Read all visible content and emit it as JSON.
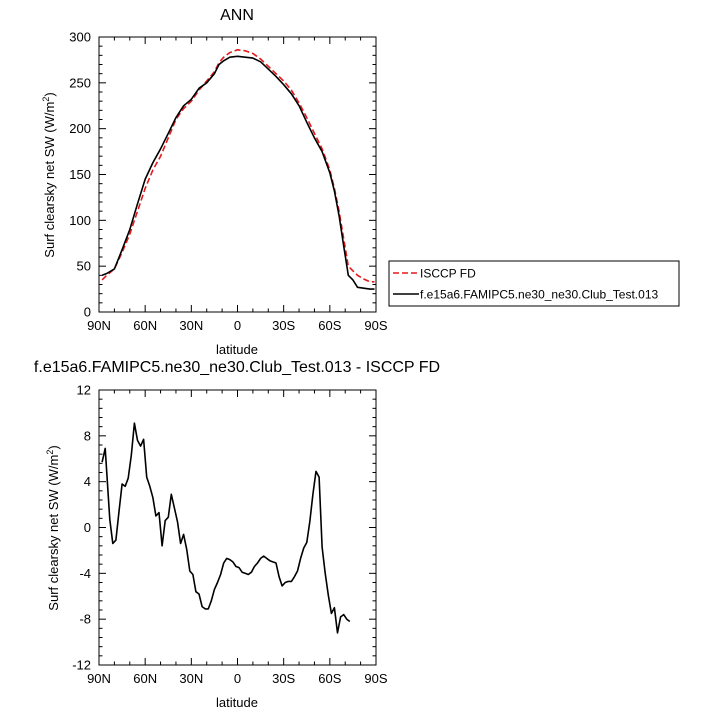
{
  "chart_data": [
    {
      "type": "line",
      "title": "ANN",
      "xlabel": "latitude",
      "ylabel": "Surf clearsky net SW (W/m²)",
      "xlim": [
        90,
        -90
      ],
      "ylim": [
        0,
        300
      ],
      "xticks": [
        90,
        60,
        30,
        0,
        -30,
        -60,
        -90
      ],
      "xtick_labels": [
        "90N",
        "60N",
        "30N",
        "0",
        "30S",
        "60S",
        "90S"
      ],
      "yticks": [
        0,
        50,
        100,
        150,
        200,
        250,
        300
      ],
      "ytick_labels": [
        "0",
        "50",
        "100",
        "150",
        "200",
        "250",
        "300"
      ],
      "legend": "right",
      "series": [
        {
          "name": "ISCCP FD",
          "color": "#e41a1c",
          "dash": true,
          "points": [
            [
              88,
              35
            ],
            [
              85,
              40
            ],
            [
              80,
              47
            ],
            [
              75,
              65
            ],
            [
              70,
              85
            ],
            [
              65,
              110
            ],
            [
              60,
              135
            ],
            [
              55,
              155
            ],
            [
              50,
              170
            ],
            [
              45,
              190
            ],
            [
              40,
              210
            ],
            [
              35,
              222
            ],
            [
              30,
              230
            ],
            [
              25,
              242
            ],
            [
              20,
              252
            ],
            [
              15,
              262
            ],
            [
              12,
              272
            ],
            [
              9,
              278
            ],
            [
              5,
              283
            ],
            [
              0,
              286
            ],
            [
              -5,
              285
            ],
            [
              -10,
              282
            ],
            [
              -15,
              276
            ],
            [
              -20,
              268
            ],
            [
              -25,
              260
            ],
            [
              -30,
              252
            ],
            [
              -35,
              242
            ],
            [
              -40,
              228
            ],
            [
              -45,
              212
            ],
            [
              -50,
              195
            ],
            [
              -55,
              178
            ],
            [
              -60,
              155
            ],
            [
              -63,
              135
            ],
            [
              -66,
              110
            ],
            [
              -69,
              80
            ],
            [
              -72,
              50
            ],
            [
              -75,
              45
            ],
            [
              -78,
              40
            ],
            [
              -82,
              36
            ],
            [
              -86,
              33
            ],
            [
              -89,
              33
            ]
          ]
        },
        {
          "name": "f.e15a6.FAMIPC5.ne30_ne30.Club_Test.013",
          "color": "#000000",
          "dash": false,
          "points": [
            [
              88,
              40
            ],
            [
              85,
              42
            ],
            [
              80,
              47
            ],
            [
              75,
              68
            ],
            [
              70,
              90
            ],
            [
              65,
              118
            ],
            [
              60,
              145
            ],
            [
              55,
              163
            ],
            [
              50,
              178
            ],
            [
              45,
              195
            ],
            [
              40,
              212
            ],
            [
              35,
              225
            ],
            [
              30,
              232
            ],
            [
              25,
              244
            ],
            [
              20,
              250
            ],
            [
              15,
              260
            ],
            [
              12,
              270
            ],
            [
              9,
              274
            ],
            [
              5,
              278
            ],
            [
              0,
              279
            ],
            [
              -5,
              278
            ],
            [
              -10,
              277
            ],
            [
              -15,
              273
            ],
            [
              -20,
              265
            ],
            [
              -25,
              257
            ],
            [
              -30,
              248
            ],
            [
              -35,
              238
            ],
            [
              -40,
              225
            ],
            [
              -45,
              207
            ],
            [
              -50,
              190
            ],
            [
              -55,
              175
            ],
            [
              -60,
              152
            ],
            [
              -63,
              132
            ],
            [
              -66,
              105
            ],
            [
              -69,
              72
            ],
            [
              -72,
              40
            ],
            [
              -75,
              35
            ],
            [
              -78,
              27
            ],
            [
              -82,
              26
            ],
            [
              -86,
              25
            ],
            [
              -89,
              25
            ]
          ]
        }
      ]
    },
    {
      "type": "line",
      "title": "f.e15a6.FAMIPC5.ne30_ne30.Club_Test.013 - ISCCP FD",
      "xlabel": "latitude",
      "ylabel": "Surf clearsky net SW (W/m²)",
      "xlim": [
        90,
        -90
      ],
      "ylim": [
        -12,
        12
      ],
      "xticks": [
        90,
        60,
        30,
        0,
        -30,
        -60,
        -90
      ],
      "xtick_labels": [
        "90N",
        "60N",
        "30N",
        "0",
        "30S",
        "60S",
        "90S"
      ],
      "yticks": [
        -12,
        -8,
        -4,
        0,
        4,
        8,
        12
      ],
      "ytick_labels": [
        "-12",
        "-8",
        "-4",
        "0",
        "4",
        "8",
        "12"
      ],
      "series": [
        {
          "color": "#000000",
          "dash": false,
          "points": [
            [
              88,
              5.7
            ],
            [
              86,
              6.9
            ],
            [
              83,
              0.7
            ],
            [
              81,
              -1.4
            ],
            [
              79,
              -1.1
            ],
            [
              77,
              1.4
            ],
            [
              75,
              3.8
            ],
            [
              73,
              3.6
            ],
            [
              71,
              4.3
            ],
            [
              69,
              6.3
            ],
            [
              67,
              9.1
            ],
            [
              65,
              7.6
            ],
            [
              63,
              7.1
            ],
            [
              61,
              7.7
            ],
            [
              59,
              4.4
            ],
            [
              57,
              3.6
            ],
            [
              55,
              2.6
            ],
            [
              53,
              1.0
            ],
            [
              51,
              1.3
            ],
            [
              49,
              -1.6
            ],
            [
              47,
              0.6
            ],
            [
              45,
              0.9
            ],
            [
              43,
              2.9
            ],
            [
              41,
              1.7
            ],
            [
              39,
              0.5
            ],
            [
              37,
              -1.4
            ],
            [
              35,
              -0.6
            ],
            [
              33,
              -1.9
            ],
            [
              31,
              -3.8
            ],
            [
              29,
              -4.1
            ],
            [
              27,
              -5.6
            ],
            [
              25,
              -5.8
            ],
            [
              23,
              -6.9
            ],
            [
              21,
              -7.1
            ],
            [
              19,
              -7.1
            ],
            [
              17,
              -6.4
            ],
            [
              15,
              -5.4
            ],
            [
              13,
              -4.8
            ],
            [
              11,
              -4.1
            ],
            [
              9,
              -3.1
            ],
            [
              7,
              -2.7
            ],
            [
              5,
              -2.8
            ],
            [
              3,
              -3.0
            ],
            [
              1,
              -3.4
            ],
            [
              -1,
              -3.5
            ],
            [
              -3,
              -3.9
            ],
            [
              -5,
              -4.0
            ],
            [
              -7,
              -4.1
            ],
            [
              -9,
              -3.9
            ],
            [
              -11,
              -3.4
            ],
            [
              -13,
              -3.1
            ],
            [
              -15,
              -2.7
            ],
            [
              -17,
              -2.5
            ],
            [
              -19,
              -2.7
            ],
            [
              -21,
              -2.9
            ],
            [
              -23,
              -3.0
            ],
            [
              -25,
              -3.1
            ],
            [
              -27,
              -4.3
            ],
            [
              -29,
              -5.1
            ],
            [
              -31,
              -4.8
            ],
            [
              -33,
              -4.7
            ],
            [
              -35,
              -4.7
            ],
            [
              -37,
              -4.3
            ],
            [
              -39,
              -3.8
            ],
            [
              -41,
              -2.7
            ],
            [
              -43,
              -1.8
            ],
            [
              -45,
              -1.3
            ],
            [
              -47,
              0.5
            ],
            [
              -49,
              2.9
            ],
            [
              -51,
              4.9
            ],
            [
              -53,
              4.4
            ],
            [
              -55,
              -1.7
            ],
            [
              -57,
              -4.0
            ],
            [
              -59,
              -5.9
            ],
            [
              -61,
              -7.5
            ],
            [
              -63,
              -7.0
            ],
            [
              -65,
              -9.2
            ],
            [
              -67,
              -7.8
            ],
            [
              -69,
              -7.6
            ],
            [
              -71,
              -8.0
            ],
            [
              -73,
              -8.2
            ]
          ]
        }
      ]
    }
  ]
}
